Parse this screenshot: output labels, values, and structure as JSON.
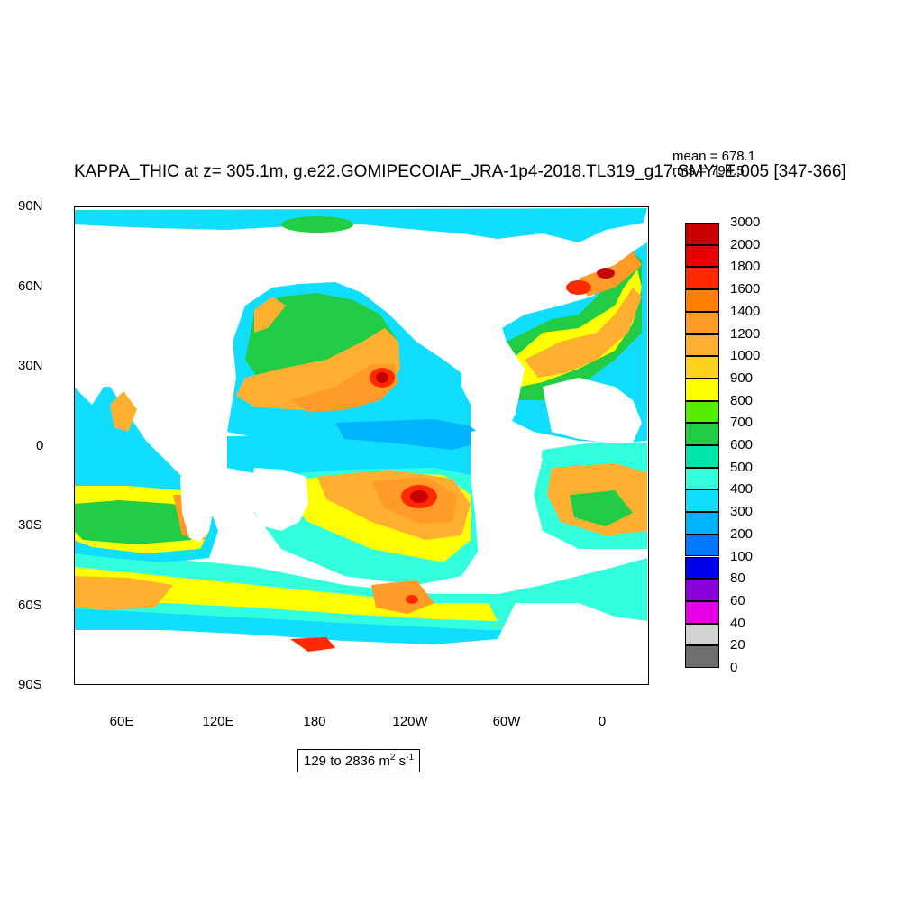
{
  "title": "KAPPA_THIC at z= 305.1m, g.e22.GOMIPECOIAF_JRA-1p4-2018.TL319_g17.SMYLE.005 [347-366]",
  "stats": {
    "mean": "mean = 678.1",
    "rms": "rms = 794.5"
  },
  "range": {
    "text": "129 to 2836 m",
    "unit1_sup": "2",
    "unit2": " s",
    "unit2_sup": "-1"
  },
  "lat_labels": [
    "90N",
    "60N",
    "30N",
    "0",
    "30S",
    "60S",
    "90S"
  ],
  "lon_labels": [
    "60E",
    "120E",
    "180",
    "120W",
    "60W",
    "0"
  ],
  "legend": {
    "labels": [
      "3000",
      "2000",
      "1800",
      "1600",
      "1400",
      "1200",
      "1000",
      "900",
      "800",
      "700",
      "600",
      "500",
      "400",
      "300",
      "200",
      "100",
      "80",
      "60",
      "40",
      "20",
      "0"
    ],
    "colors": [
      "#c80000",
      "#e60000",
      "#ff2a00",
      "#ff7f00",
      "#ff9b26",
      "#ffb030",
      "#ffd21e",
      "#ffff00",
      "#55ee00",
      "#22cc44",
      "#00e6aa",
      "#33ffdd",
      "#11ddff",
      "#00b4ff",
      "#0078ff",
      "#0000ee",
      "#8a00d8",
      "#e600e6",
      "#d2d2d2",
      "#6e6e6e"
    ]
  },
  "colors": {
    "land": "#ffffff",
    "base_ocean": "#11ddff"
  }
}
